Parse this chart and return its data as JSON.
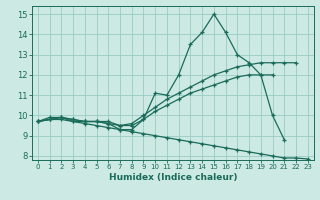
{
  "bg_color": "#cce9e3",
  "grid_color": "#99ccc4",
  "line_color": "#1a6b5a",
  "xlabel": "Humidex (Indice chaleur)",
  "xlim": [
    -0.5,
    23.5
  ],
  "ylim": [
    7.8,
    15.4
  ],
  "xticks": [
    0,
    1,
    2,
    3,
    4,
    5,
    6,
    7,
    8,
    9,
    10,
    11,
    12,
    13,
    14,
    15,
    16,
    17,
    18,
    19,
    20,
    21,
    22,
    23
  ],
  "yticks": [
    8,
    9,
    10,
    11,
    12,
    13,
    14,
    15
  ],
  "lines": [
    {
      "x": [
        0,
        1,
        2,
        3,
        4,
        5,
        6,
        7,
        8,
        9,
        10,
        11,
        12,
        13,
        14,
        15,
        16,
        17,
        18,
        19,
        20,
        21
      ],
      "y": [
        9.7,
        9.9,
        9.9,
        9.7,
        9.7,
        9.7,
        9.6,
        9.3,
        9.3,
        9.8,
        11.1,
        11.0,
        12.0,
        13.5,
        14.1,
        15.0,
        14.1,
        13.0,
        12.6,
        12.0,
        10.0,
        8.8
      ]
    },
    {
      "x": [
        0,
        1,
        2,
        3,
        4,
        5,
        6,
        7,
        8,
        9,
        10,
        11,
        12,
        13,
        14,
        15,
        16,
        17,
        18,
        19,
        20,
        21,
        22
      ],
      "y": [
        9.7,
        9.8,
        9.9,
        9.8,
        9.7,
        9.7,
        9.7,
        9.5,
        9.6,
        10.0,
        10.4,
        10.8,
        11.1,
        11.4,
        11.7,
        12.0,
        12.2,
        12.4,
        12.5,
        12.6,
        12.6,
        12.6,
        12.6
      ]
    },
    {
      "x": [
        0,
        1,
        2,
        3,
        4,
        5,
        6,
        7,
        8,
        9,
        10,
        11,
        12,
        13,
        14,
        15,
        16,
        17,
        18,
        19,
        20
      ],
      "y": [
        9.7,
        9.8,
        9.9,
        9.8,
        9.7,
        9.7,
        9.6,
        9.5,
        9.5,
        9.8,
        10.2,
        10.5,
        10.8,
        11.1,
        11.3,
        11.5,
        11.7,
        11.9,
        12.0,
        12.0,
        12.0
      ]
    },
    {
      "x": [
        0,
        1,
        2,
        3,
        4,
        5,
        6,
        7,
        8,
        9,
        10,
        11,
        12,
        13,
        14,
        15,
        16,
        17,
        18,
        19,
        20,
        21,
        22,
        23
      ],
      "y": [
        9.7,
        9.8,
        9.8,
        9.7,
        9.6,
        9.5,
        9.4,
        9.3,
        9.2,
        9.1,
        9.0,
        8.9,
        8.8,
        8.7,
        8.6,
        8.5,
        8.4,
        8.3,
        8.2,
        8.1,
        8.0,
        7.9,
        7.9,
        7.85
      ]
    }
  ]
}
